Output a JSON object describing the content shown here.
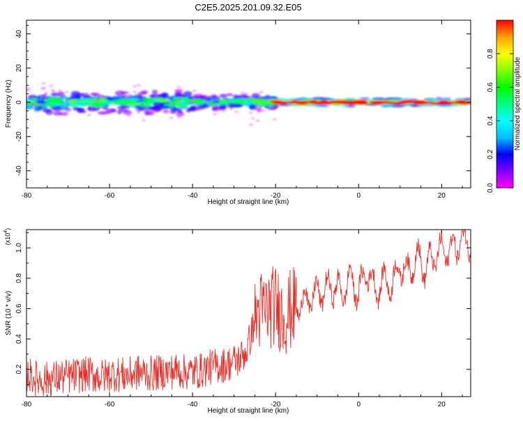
{
  "title": "C2E5.2025.201.09.32.E05",
  "chart_data": [
    {
      "type": "heatmap",
      "title": "C2E5.2025.201.09.32.E05",
      "xlabel": "Height of straight line (km)",
      "ylabel": "Frequency (Hz)",
      "xlim": [
        -80,
        27
      ],
      "ylim": [
        -50,
        48
      ],
      "x_ticks": [
        "-80",
        "-60",
        "-40",
        "-20",
        "0",
        "20"
      ],
      "y_ticks": [
        "40",
        "20",
        "0",
        "-20",
        "-40"
      ],
      "grid": false,
      "colorbar": {
        "label": "Normalized spectral amplitude",
        "range": [
          0,
          1
        ],
        "ticks": [
          "0.0",
          "0.2",
          "0.4",
          "0.6",
          "0.8"
        ],
        "colormap": [
          "#ff00ff",
          "#8000ff",
          "#0000ff",
          "#00c0ff",
          "#00ffff",
          "#00ff80",
          "#00ff00",
          "#80ff00",
          "#ffff00",
          "#ffa000",
          "#ff0000"
        ]
      },
      "bands": [
        {
          "x_range": [
            -80,
            -40
          ],
          "freq_center_hz": 0,
          "freq_halfwidth_hz": 6,
          "typical_amplitude": 0.35
        },
        {
          "x_range": [
            -40,
            -20
          ],
          "freq_center_hz": 0,
          "freq_halfwidth_hz": 4,
          "typical_amplitude": 0.35
        },
        {
          "x_range": [
            -20,
            27
          ],
          "freq_center_hz": 0,
          "freq_halfwidth_hz": 2,
          "typical_amplitude": 0.8
        }
      ]
    },
    {
      "type": "line",
      "xlabel": "Height of straight line (km)",
      "ylabel": "SNR (10 * v/v)",
      "y_multiplier": "(x10^4)",
      "y_multiplier_base": "(x10",
      "y_multiplier_exp": "4",
      "y_multiplier_close": ")",
      "xlim": [
        -80,
        27
      ],
      "ylim": [
        0.02,
        1.12
      ],
      "x_ticks": [
        "-80",
        "-60",
        "-40",
        "-20",
        "0",
        "20"
      ],
      "y_ticks": [
        "0.2",
        "0.4",
        "0.6",
        "0.8",
        "1.0"
      ],
      "grid": false,
      "series": [
        {
          "color": "#e8302a",
          "x": [
            -80,
            -77,
            -74,
            -71,
            -68,
            -65,
            -62,
            -59,
            -56,
            -53,
            -50,
            -47,
            -44,
            -41,
            -38,
            -35,
            -32,
            -29,
            -27,
            -25,
            -24,
            -22,
            -20,
            -18,
            -16,
            -14,
            -12,
            -10,
            -8,
            -6,
            -4,
            -2,
            0,
            2,
            4,
            6,
            8,
            10,
            12,
            14,
            16,
            18,
            20,
            22,
            24,
            26,
            27
          ],
          "values": [
            0.17,
            0.13,
            0.14,
            0.15,
            0.16,
            0.17,
            0.15,
            0.17,
            0.16,
            0.18,
            0.17,
            0.18,
            0.19,
            0.18,
            0.19,
            0.22,
            0.23,
            0.26,
            0.32,
            0.52,
            0.58,
            0.6,
            0.62,
            0.55,
            0.6,
            0.64,
            0.66,
            0.7,
            0.72,
            0.75,
            0.7,
            0.8,
            0.7,
            0.86,
            0.72,
            0.78,
            0.76,
            0.88,
            0.84,
            0.95,
            0.86,
            0.94,
            0.98,
            0.98,
            1.03,
            1.05,
            1.05
          ]
        }
      ]
    }
  ]
}
